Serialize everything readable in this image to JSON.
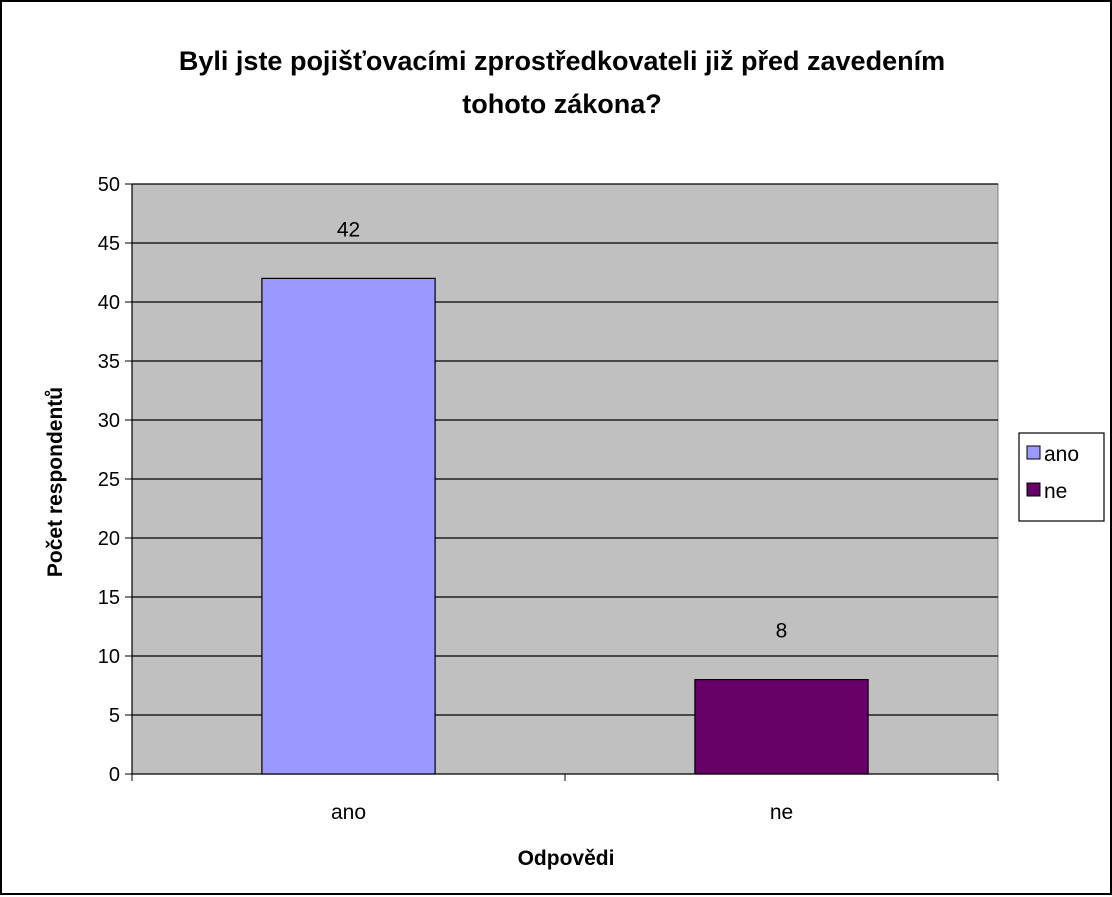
{
  "chart_data": {
    "type": "bar",
    "title_lines": [
      "Byli jste pojišťovacími zprostředkovateli již před zavedením",
      "tohoto zákona?"
    ],
    "xlabel": "Odpovědi",
    "ylabel": "Počet respondentů",
    "categories": [
      "ano",
      "ne"
    ],
    "values": [
      42,
      8
    ],
    "data_labels": [
      "42",
      "8"
    ],
    "colors": [
      "#9999ff",
      "#660066"
    ],
    "ylim": [
      0,
      50
    ],
    "yticks": [
      0,
      5,
      10,
      15,
      20,
      25,
      30,
      35,
      40,
      45,
      50
    ],
    "ytick_labels": [
      "0",
      "5",
      "10",
      "15",
      "20",
      "25",
      "30",
      "35",
      "40",
      "45",
      "50"
    ],
    "grid": true,
    "plot_background": "#c0c0c0",
    "legend": {
      "placement": "right",
      "entries": [
        {
          "name": "ano",
          "color": "#9999ff"
        },
        {
          "name": "ne",
          "color": "#660066"
        }
      ]
    }
  }
}
